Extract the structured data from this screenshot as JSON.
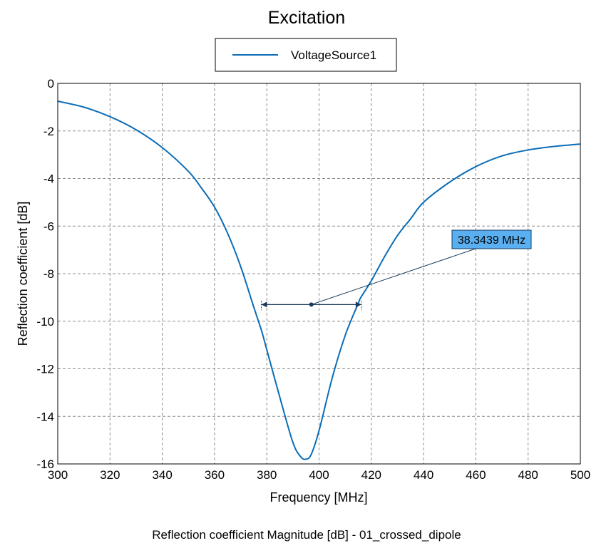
{
  "chart_data": {
    "type": "line",
    "title": "Excitation",
    "xlabel": "Frequency [MHz]",
    "ylabel": "Reflection coefficient [dB]",
    "xlim": [
      300,
      500
    ],
    "ylim": [
      -16,
      0
    ],
    "x_ticks": [
      "300",
      "320",
      "340",
      "360",
      "380",
      "400",
      "420",
      "440",
      "460",
      "480",
      "500"
    ],
    "y_ticks": [
      "0",
      "-2",
      "-4",
      "-6",
      "-8",
      "-10",
      "-12",
      "-14",
      "-16"
    ],
    "grid": true,
    "legend_placement": "top-center",
    "series": [
      {
        "name": "VoltageSource1",
        "color": "#0b6db7",
        "x": [
          300,
          310,
          320,
          330,
          340,
          350,
          355,
          360,
          365,
          370,
          375,
          378,
          380,
          385,
          390,
          393,
          395,
          397,
          400,
          405,
          410,
          415,
          416,
          420,
          425,
          430,
          435,
          440,
          450,
          460,
          470,
          480,
          490,
          500
        ],
        "y": [
          -0.75,
          -1.0,
          -1.4,
          -1.95,
          -2.7,
          -3.7,
          -4.4,
          -5.2,
          -6.3,
          -7.7,
          -9.4,
          -10.4,
          -11.2,
          -13.2,
          -15.1,
          -15.7,
          -15.8,
          -15.6,
          -14.6,
          -12.4,
          -10.6,
          -9.25,
          -9.0,
          -8.3,
          -7.3,
          -6.4,
          -5.7,
          -5.0,
          -4.15,
          -3.5,
          -3.05,
          -2.8,
          -2.65,
          -2.55
        ]
      }
    ],
    "annotation": {
      "text": "38.3439 MHz",
      "bandwidth_start": 377.9,
      "bandwidth_end": 416.2,
      "level": -9.3
    },
    "footer": "Reflection coefficient Magnitude [dB] - 01_crossed_dipole"
  }
}
